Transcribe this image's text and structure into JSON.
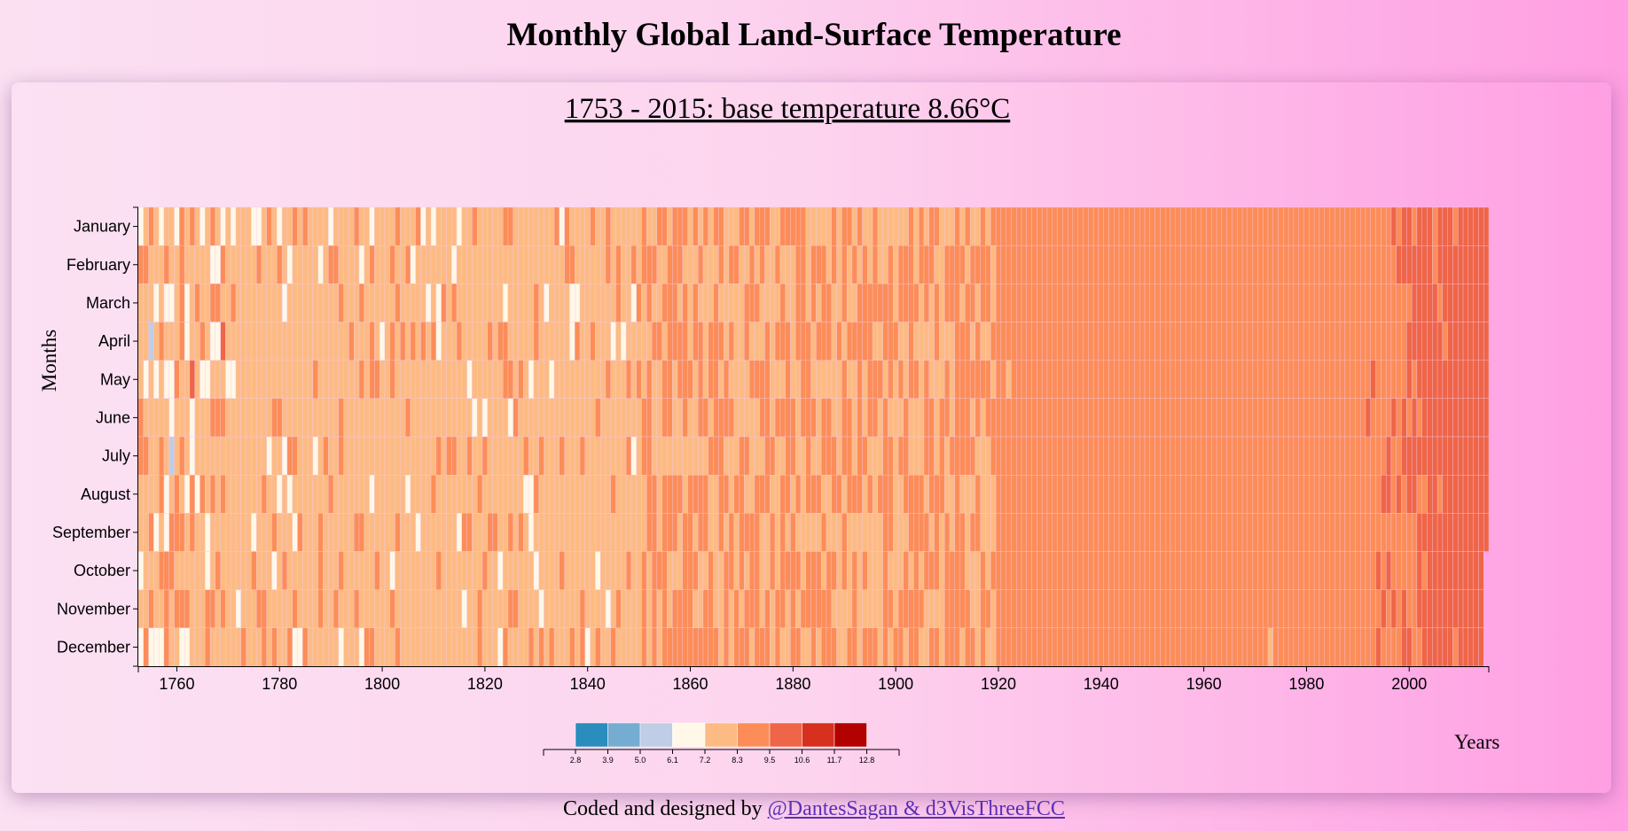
{
  "page": {
    "title": "Monthly Global Land-Surface Temperature",
    "footer_prefix": "Coded and designed by ",
    "footer_link": "@DantesSagan & d3VisThreeFCC"
  },
  "chart_data": {
    "type": "heatmap",
    "subtitle": "1753 - 2015: base temperature 8.66°C",
    "base_temperature": 8.66,
    "xlabel": "Years",
    "ylabel": "Months",
    "xlim": [
      1753,
      2015
    ],
    "x_ticks": [
      "1760",
      "1780",
      "1800",
      "1820",
      "1840",
      "1860",
      "1880",
      "1900",
      "1920",
      "1940",
      "1960",
      "1980",
      "2000"
    ],
    "months": [
      "January",
      "February",
      "March",
      "April",
      "May",
      "June",
      "July",
      "August",
      "September",
      "October",
      "November",
      "December"
    ],
    "legend": {
      "ticks": [
        "2.8",
        "3.9",
        "5.0",
        "6.1",
        "7.2",
        "8.3",
        "9.5",
        "10.6",
        "11.7",
        "12.8"
      ],
      "colors": [
        "#2b8cbe",
        "#74add1",
        "#bfcde6",
        "#fff8e8",
        "#fdbb84",
        "#fc8d59",
        "#ef6548",
        "#d7301f",
        "#b30000"
      ]
    },
    "colors": {
      "text": "#000000",
      "link": "#5a2fb5",
      "cell_stroke": "#f5c8e8"
    }
  }
}
